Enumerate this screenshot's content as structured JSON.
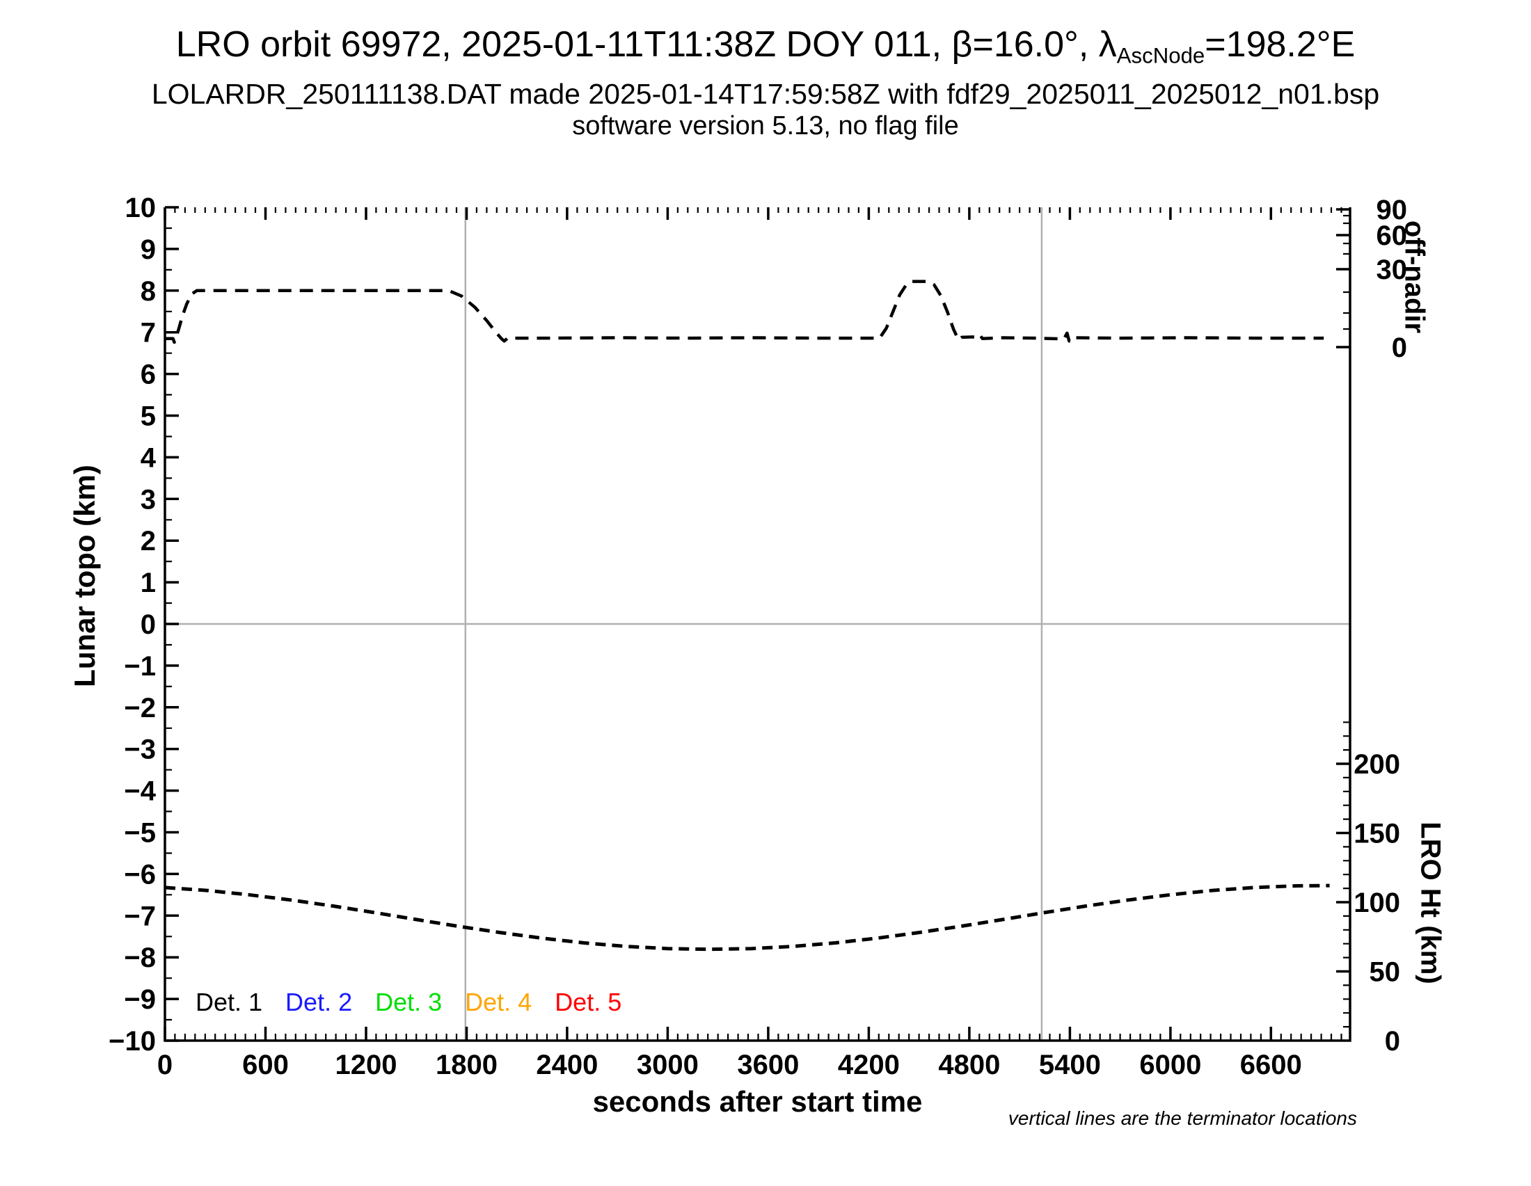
{
  "header": {
    "title_pre": "LRO orbit 69972, 2025-01-11T11:38Z DOY 011, β=16.0°, λ",
    "title_sub": "AscNode",
    "title_post": "=198.2°E",
    "subtitle": "LOLARDR_250111138.DAT made 2025-01-14T17:59:58Z with fdf29_2025011_2025012_n01.bsp",
    "software_line": "software version 5.13, no flag file"
  },
  "legend": [
    {
      "label": "Det. 1",
      "color": "#000000"
    },
    {
      "label": "Det. 2",
      "color": "#1a1aff"
    },
    {
      "label": "Det. 3",
      "color": "#00dd00"
    },
    {
      "label": "Det. 4",
      "color": "#ffa500"
    },
    {
      "label": "Det. 5",
      "color": "#ff0000"
    }
  ],
  "footnote": "vertical lines are the terminator locations",
  "chart_data": {
    "type": "line",
    "title": "LRO orbit 69972, 2025-01-11T11:38Z DOY 011, β=16.0°, λAscNode=198.2°E",
    "xlabel": "seconds after start time",
    "x_axis": {
      "range_s": [
        0,
        7072
      ],
      "tick_values": [
        0,
        600,
        1200,
        1800,
        2400,
        3000,
        3600,
        4200,
        4800,
        5400,
        6000,
        6600
      ],
      "tick_labels": [
        "0",
        "600",
        "1200",
        "1800",
        "2400",
        "3000",
        "3600",
        "4200",
        "4800",
        "5400",
        "6000",
        "6600"
      ],
      "minor_tick_step_s": 60
    },
    "left_axis": {
      "label": "Lunar topo (km)",
      "range": [
        -10,
        10
      ],
      "tick_labels": [
        "10",
        "9",
        "8",
        "7",
        "6",
        "5",
        "4",
        "3",
        "2",
        "1",
        "0",
        "−1",
        "−2",
        "−3",
        "−4",
        "−5",
        "−6",
        "−7",
        "−8",
        "−9",
        "−10"
      ],
      "tick_values": [
        10,
        9,
        8,
        7,
        6,
        5,
        4,
        3,
        2,
        1,
        0,
        -1,
        -2,
        -3,
        -4,
        -5,
        -6,
        -7,
        -8,
        -9,
        -10
      ],
      "minor_tick_step": 0.5
    },
    "right_axis_top": {
      "label": "off-nadir",
      "units": "degrees",
      "scale": "nonlinear (sine-compressed toward 90)",
      "tick_labels": [
        "90",
        "60",
        "30",
        "0"
      ],
      "tick_values": [
        90,
        60,
        30,
        0
      ]
    },
    "right_axis_bottom": {
      "label": "LRO Ht (km)",
      "range_km": [
        0,
        240
      ],
      "tick_labels": [
        "200",
        "150",
        "100",
        "50",
        "0"
      ],
      "tick_values": [
        200,
        150,
        100,
        50,
        0
      ],
      "minor_tick_step_km": 10
    },
    "gridlines": {
      "horizontal_zero_line": true,
      "color": "#b0b0b0"
    },
    "terminator_lines_s": [
      1793,
      5232
    ],
    "series": [
      {
        "name": "off-nadir angle",
        "reads_on": "right_axis_top",
        "style": "dashed",
        "color": "#000000",
        "y_units": "plotted position in left-axis km units",
        "approx_right_axis_reading": "baseline 6.86 ≈ 3°, plateau 8.0 ≈ 24°, bump 8.22 ≈ 28°",
        "points": [
          [
            0,
            6.85
          ],
          [
            48,
            6.85
          ],
          [
            56,
            6.76
          ],
          [
            80,
            7.05
          ],
          [
            105,
            7.4
          ],
          [
            130,
            7.68
          ],
          [
            160,
            7.92
          ],
          [
            190,
            8.0
          ],
          [
            600,
            8.0
          ],
          [
            1100,
            8.0
          ],
          [
            1694,
            8.0
          ],
          [
            1770,
            7.87
          ],
          [
            1850,
            7.6
          ],
          [
            1920,
            7.28
          ],
          [
            1975,
            7.0
          ],
          [
            2010,
            6.84
          ],
          [
            2025,
            6.79
          ],
          [
            2045,
            6.86
          ],
          [
            2300,
            6.86
          ],
          [
            2700,
            6.87
          ],
          [
            3100,
            6.86
          ],
          [
            3500,
            6.87
          ],
          [
            3900,
            6.86
          ],
          [
            4265,
            6.86
          ],
          [
            4305,
            7.1
          ],
          [
            4345,
            7.5
          ],
          [
            4385,
            7.9
          ],
          [
            4425,
            8.15
          ],
          [
            4455,
            8.22
          ],
          [
            4550,
            8.22
          ],
          [
            4590,
            8.14
          ],
          [
            4630,
            7.88
          ],
          [
            4670,
            7.48
          ],
          [
            4705,
            7.08
          ],
          [
            4735,
            6.82
          ],
          [
            4755,
            6.88
          ],
          [
            4840,
            6.89
          ],
          [
            4860,
            6.95
          ],
          [
            4878,
            6.85
          ],
          [
            5000,
            6.87
          ],
          [
            5200,
            6.86
          ],
          [
            5365,
            6.84
          ],
          [
            5383,
            6.98
          ],
          [
            5396,
            6.79
          ],
          [
            5412,
            6.87
          ],
          [
            5700,
            6.86
          ],
          [
            6100,
            6.87
          ],
          [
            6500,
            6.86
          ],
          [
            6915,
            6.86
          ]
        ]
      },
      {
        "name": "LRO height",
        "reads_on": "right_axis_bottom",
        "style": "dashed",
        "color": "#000000",
        "y_units": "km",
        "points": [
          [
            0,
            110.6
          ],
          [
            250,
            108.5
          ],
          [
            500,
            105.4
          ],
          [
            750,
            101.6
          ],
          [
            1000,
            97.3
          ],
          [
            1250,
            92.5
          ],
          [
            1500,
            87.5
          ],
          [
            1750,
            82.6
          ],
          [
            2000,
            78.1
          ],
          [
            2250,
            74.0
          ],
          [
            2500,
            70.6
          ],
          [
            2750,
            68.1
          ],
          [
            3000,
            66.5
          ],
          [
            3250,
            66.0
          ],
          [
            3500,
            66.5
          ],
          [
            3750,
            68.1
          ],
          [
            4000,
            70.6
          ],
          [
            4250,
            74.0
          ],
          [
            4500,
            78.1
          ],
          [
            4750,
            82.6
          ],
          [
            5000,
            87.5
          ],
          [
            5250,
            92.5
          ],
          [
            5500,
            97.3
          ],
          [
            5750,
            101.6
          ],
          [
            6000,
            105.4
          ],
          [
            6250,
            108.5
          ],
          [
            6500,
            110.6
          ],
          [
            6750,
            111.8
          ],
          [
            6950,
            112.0
          ]
        ]
      }
    ],
    "legend_entries": [
      "Det. 1",
      "Det. 2",
      "Det. 3",
      "Det. 4",
      "Det. 5"
    ],
    "legend_position": "bottom-left inside plot",
    "annotation": "vertical lines are the terminator locations"
  }
}
